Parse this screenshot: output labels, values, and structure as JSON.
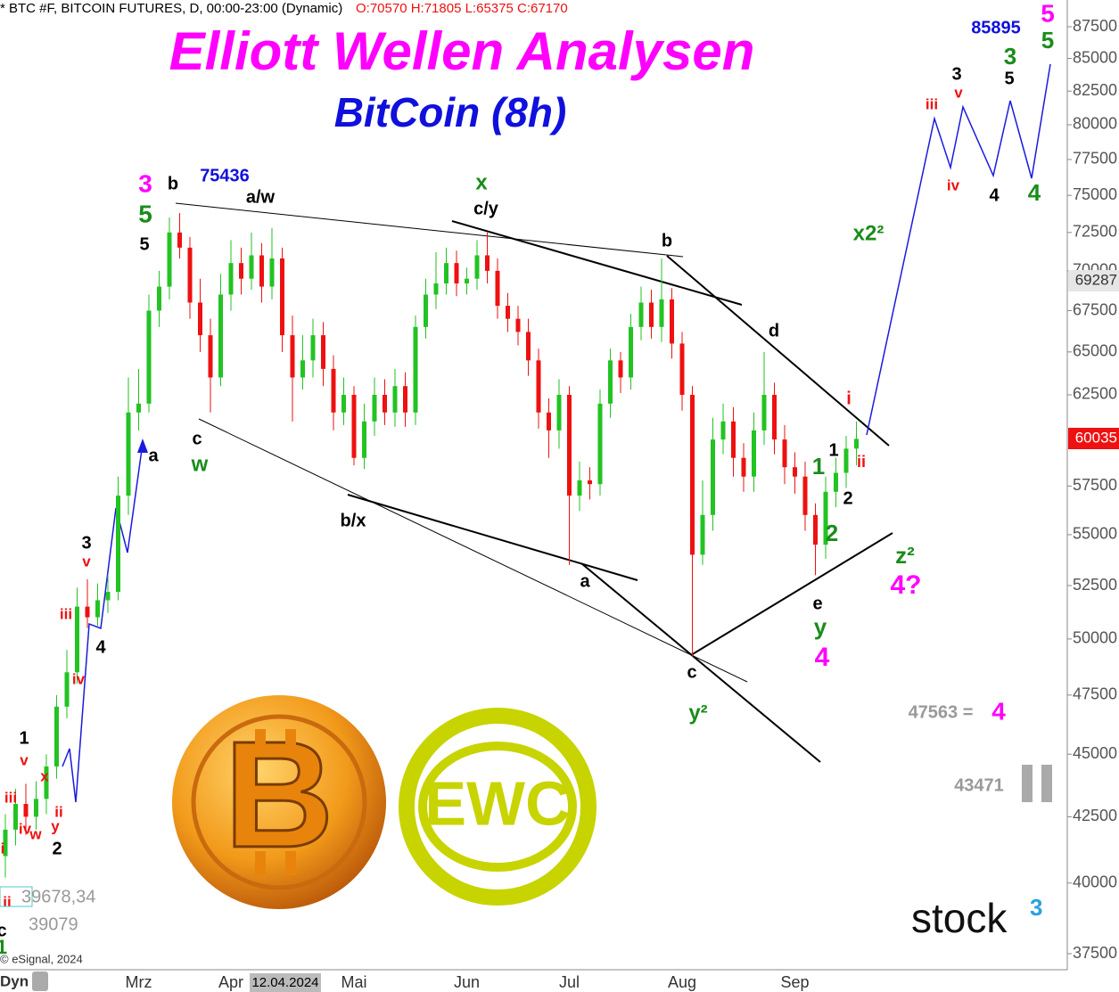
{
  "chart_data": {
    "type": "candlestick",
    "header": "* BTC #F, BITCOIN FUTURES, D, 00:00-23:00 (Dynamic)",
    "ohlc_header": "O:70570 H:71805 L:65375 C:67170",
    "title": "Elliott Wellen Analysen",
    "subtitle": "BitCoin (8h)",
    "log_scale": true,
    "up_color": "#22c322",
    "down_color": "#ee1111",
    "categories": [
      null,
      null,
      null,
      null,
      null,
      null,
      null,
      null,
      null,
      null,
      null,
      null,
      null,
      "Mrz",
      null,
      null,
      null,
      null,
      null,
      null,
      null,
      null,
      "Apr",
      null,
      null,
      null,
      null,
      null,
      null,
      null,
      null,
      null,
      null,
      null,
      "Mai",
      null,
      null,
      null,
      null,
      null,
      null,
      null,
      null,
      null,
      null,
      "Jun",
      null,
      null,
      null,
      null,
      null,
      null,
      null,
      null,
      null,
      "Jul",
      null,
      null,
      null,
      null,
      null,
      null,
      null,
      null,
      null,
      null,
      "Aug",
      null,
      null,
      null,
      null,
      null,
      null,
      null,
      null,
      null,
      null,
      "Sep",
      null,
      null,
      null,
      null,
      null,
      null
    ],
    "open": [
      41000,
      42000,
      43000,
      42500,
      43200,
      44500,
      47000,
      48500,
      51500,
      51000,
      51800,
      52200,
      57000,
      61500,
      62000,
      67500,
      69000,
      72500,
      71500,
      68000,
      66000,
      63500,
      68500,
      70500,
      69500,
      71000,
      69000,
      70800,
      66000,
      63500,
      64500,
      66000,
      64000,
      61500,
      62500,
      59000,
      61000,
      62500,
      61500,
      63000,
      61500,
      66500,
      68500,
      69200,
      70500,
      69200,
      69500,
      71000,
      70000,
      67800,
      67000,
      66200,
      64500,
      61500,
      60500,
      62500,
      57000,
      57800,
      57600,
      62000,
      64500,
      63500,
      66500,
      68000,
      66500,
      68200,
      65500,
      62500,
      54000,
      56000,
      60000,
      61000,
      59000,
      58000,
      60500,
      62500,
      60000,
      58500,
      58000,
      56000,
      54500,
      57200,
      58200,
      59500
    ],
    "high": [
      42600,
      43600,
      43800,
      43900,
      45000,
      47500,
      49500,
      52400,
      52800,
      52600,
      53000,
      58000,
      63500,
      64000,
      68500,
      70000,
      73500,
      73800,
      72200,
      69500,
      67000,
      69800,
      72000,
      71500,
      72500,
      71800,
      72800,
      71500,
      67200,
      66000,
      67000,
      66800,
      64800,
      63500,
      63000,
      62000,
      63500,
      63400,
      64000,
      63800,
      67200,
      69500,
      71200,
      71500,
      71300,
      70200,
      72000,
      72500,
      70800,
      68600,
      67800,
      67000,
      65200,
      62300,
      63400,
      63000,
      58800,
      58500,
      62800,
      65200,
      65000,
      67300,
      69000,
      68800,
      70800,
      68900,
      66200,
      63000,
      57800,
      61200,
      62000,
      61800,
      59800,
      61500,
      65000,
      63200,
      60800,
      59300,
      58800,
      56600,
      58000,
      59000,
      60200,
      61000
    ],
    "low": [
      40200,
      41400,
      41800,
      42000,
      42600,
      44000,
      46500,
      48000,
      50500,
      50600,
      51200,
      51800,
      56000,
      60500,
      61500,
      66500,
      68200,
      70800,
      67000,
      65000,
      61500,
      63000,
      67500,
      68500,
      68800,
      68000,
      68200,
      65000,
      61000,
      62800,
      63500,
      63000,
      60500,
      60800,
      58600,
      58400,
      60200,
      60800,
      60700,
      60700,
      60800,
      65800,
      67600,
      68500,
      68400,
      68500,
      68800,
      69200,
      67000,
      66200,
      65400,
      63600,
      60600,
      59000,
      59500,
      53500,
      56200,
      56800,
      57000,
      61200,
      62600,
      62800,
      65700,
      65800,
      65600,
      64600,
      61600,
      49200,
      53500,
      55200,
      59200,
      58000,
      57200,
      57200,
      59700,
      59200,
      57600,
      57100,
      55200,
      53000,
      53800,
      56400,
      57400,
      58600
    ],
    "close": [
      42000,
      43000,
      42500,
      43200,
      44500,
      47000,
      48500,
      51500,
      51000,
      51800,
      52200,
      57000,
      61500,
      62000,
      67500,
      69000,
      72500,
      71500,
      68000,
      66000,
      63500,
      68500,
      70500,
      69500,
      71000,
      69000,
      70800,
      66000,
      63500,
      64500,
      66000,
      64000,
      61500,
      62500,
      59000,
      61000,
      62500,
      61500,
      63000,
      61500,
      66500,
      68500,
      69200,
      70500,
      69200,
      69500,
      71000,
      70000,
      67800,
      67000,
      66200,
      64500,
      61500,
      60500,
      62500,
      57000,
      57800,
      57600,
      62000,
      64500,
      63500,
      66500,
      68000,
      66500,
      68200,
      65500,
      62500,
      54000,
      56000,
      60000,
      61000,
      59000,
      58000,
      60500,
      62500,
      60000,
      58500,
      58000,
      56000,
      54500,
      57200,
      58200,
      59500,
      60035
    ],
    "ylim": [
      37500,
      87500
    ],
    "yticks": [
      37500,
      40000,
      42500,
      45000,
      47500,
      50000,
      52500,
      55000,
      57500,
      62500,
      65000,
      67500,
      70000,
      72500,
      75000,
      77500,
      80000,
      82500,
      85000,
      87500
    ],
    "price_labels": [
      {
        "text": "69287",
        "color": "#888888"
      },
      {
        "text": "60035",
        "color": "#ee1111"
      }
    ],
    "cursor_date": "12.04.2024",
    "annotations": [
      {
        "text": "3",
        "color": "#ff00ff"
      },
      {
        "text": "5",
        "color": "#1a8c1a"
      },
      {
        "text": "5",
        "color": "#000000"
      },
      {
        "text": "b",
        "color": "#000000"
      },
      {
        "text": "75436",
        "color": "#1010dd"
      },
      {
        "text": "a/w",
        "color": "#000000"
      },
      {
        "text": "x",
        "color": "#1a8c1a"
      },
      {
        "text": "c/y",
        "color": "#000000"
      },
      {
        "text": "b",
        "color": "#000000"
      },
      {
        "text": "d",
        "color": "#000000"
      },
      {
        "text": "i",
        "color": "#ee1111"
      },
      {
        "text": "1",
        "color": "#000000"
      },
      {
        "text": "1",
        "color": "#1a8c1a"
      },
      {
        "text": "ii",
        "color": "#ee1111"
      },
      {
        "text": "2",
        "color": "#000000"
      },
      {
        "text": "2",
        "color": "#1a8c1a"
      },
      {
        "text": "e",
        "color": "#000000"
      },
      {
        "text": "y",
        "color": "#1a8c1a"
      },
      {
        "text": "4",
        "color": "#ff00ff"
      },
      {
        "text": "z²",
        "color": "#1a8c1a"
      },
      {
        "text": "4?",
        "color": "#ff00ff"
      },
      {
        "text": "x2²",
        "color": "#1a8c1a"
      },
      {
        "text": "a",
        "color": "#000000"
      },
      {
        "text": "c",
        "color": "#000000"
      },
      {
        "text": "y²",
        "color": "#1a8c1a"
      },
      {
        "text": "b/x",
        "color": "#000000"
      },
      {
        "text": "c",
        "color": "#000000"
      },
      {
        "text": "w",
        "color": "#1a8c1a"
      },
      {
        "text": "a",
        "color": "#000000"
      },
      {
        "text": "3",
        "color": "#000000"
      },
      {
        "text": "v",
        "color": "#ee1111"
      },
      {
        "text": "iii",
        "color": "#ee1111"
      },
      {
        "text": "4",
        "color": "#000000"
      },
      {
        "text": "iv",
        "color": "#ee1111"
      },
      {
        "text": "1",
        "color": "#000000"
      },
      {
        "text": "v",
        "color": "#ee1111"
      },
      {
        "text": "iii",
        "color": "#ee1111"
      },
      {
        "text": "x",
        "color": "#ee1111"
      },
      {
        "text": "iv",
        "color": "#ee1111"
      },
      {
        "text": "w",
        "color": "#ee1111"
      },
      {
        "text": "ii",
        "color": "#ee1111"
      },
      {
        "text": "y",
        "color": "#ee1111"
      },
      {
        "text": "2",
        "color": "#000000"
      },
      {
        "text": "i",
        "color": "#ee1111"
      },
      {
        "text": "ii",
        "color": "#ee1111"
      },
      {
        "text": "c",
        "color": "#000000"
      },
      {
        "text": "1",
        "color": "#1a8c1a"
      },
      {
        "text": "85895",
        "color": "#1010dd"
      },
      {
        "text": "5",
        "color": "#ff00ff"
      },
      {
        "text": "3",
        "color": "#1a8c1a"
      },
      {
        "text": "5",
        "color": "#1a8c1a"
      },
      {
        "text": "3",
        "color": "#000000"
      },
      {
        "text": "v",
        "color": "#ee1111"
      },
      {
        "text": "iii",
        "color": "#ee1111"
      },
      {
        "text": "5",
        "color": "#000000"
      },
      {
        "text": "iv",
        "color": "#ee1111"
      },
      {
        "text": "4",
        "color": "#000000"
      },
      {
        "text": "4",
        "color": "#1a8c1a"
      },
      {
        "text": "47563 =",
        "color": "#999999"
      },
      {
        "text": "4",
        "color": "#ff00ff"
      },
      {
        "text": "43471",
        "color": "#999999"
      }
    ],
    "footer_texts": [
      "39678,34",
      "39079",
      "© eSignal, 2024",
      "Dyn"
    ],
    "logo_ewc": "EWC",
    "logo_stock": "stock",
    "logo_stock_sup": "3"
  }
}
